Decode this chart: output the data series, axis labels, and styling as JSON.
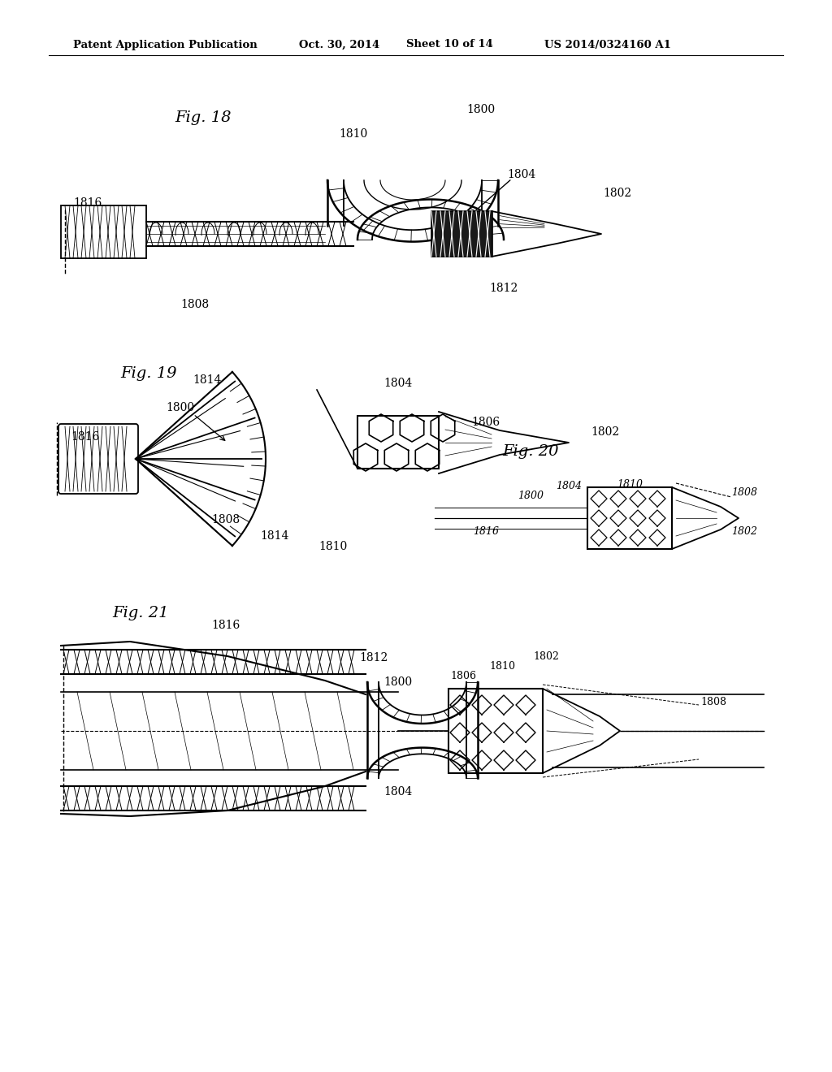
{
  "background_color": "#ffffff",
  "header_text": "Patent Application Publication",
  "header_date": "Oct. 30, 2014",
  "header_sheet": "Sheet 10 of 14",
  "header_patent": "US 2014/0324160 A1",
  "text_color": "#000000",
  "line_color": "#000000"
}
